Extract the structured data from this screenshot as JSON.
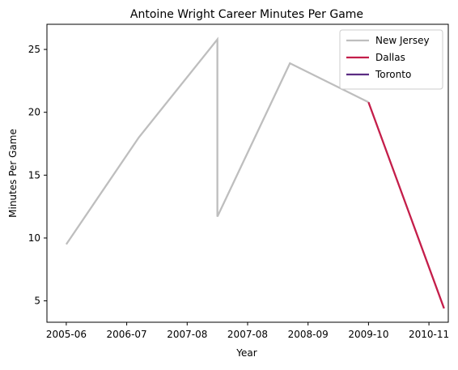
{
  "chart_data": {
    "type": "line",
    "title": "Antoine Wright  Career Minutes Per Game",
    "xlabel": "Year",
    "ylabel": "Minutes Per Game",
    "x_tick_labels": [
      "2005-06",
      "2006-07",
      "2007-08",
      "2007-08",
      "2008-09",
      "2009-10",
      "2010-11"
    ],
    "x_tick_positions": [
      0,
      1,
      2,
      3,
      4,
      5,
      6
    ],
    "yticks": [
      5,
      10,
      15,
      20,
      25
    ],
    "xlim": [
      -0.32,
      6.32
    ],
    "ylim": [
      3.3,
      27.0
    ],
    "grid": false,
    "legend_position": "upper right",
    "series": [
      {
        "name": "New Jersey",
        "color": "#bebebe",
        "points": [
          {
            "x": 0.0,
            "y": 9.5
          },
          {
            "x": 1.2,
            "y": 18.0
          },
          {
            "x": 2.5,
            "y": 25.8
          },
          {
            "x": 2.5,
            "y": 11.7
          },
          {
            "x": 3.7,
            "y": 23.9
          },
          {
            "x": 5.0,
            "y": 20.8
          }
        ]
      },
      {
        "name": "Dallas",
        "color": "#c41e4a",
        "points": [
          {
            "x": 5.0,
            "y": 20.8
          },
          {
            "x": 6.25,
            "y": 4.4
          }
        ]
      },
      {
        "name": "Toronto",
        "color": "#5b2c83",
        "points": []
      }
    ]
  }
}
